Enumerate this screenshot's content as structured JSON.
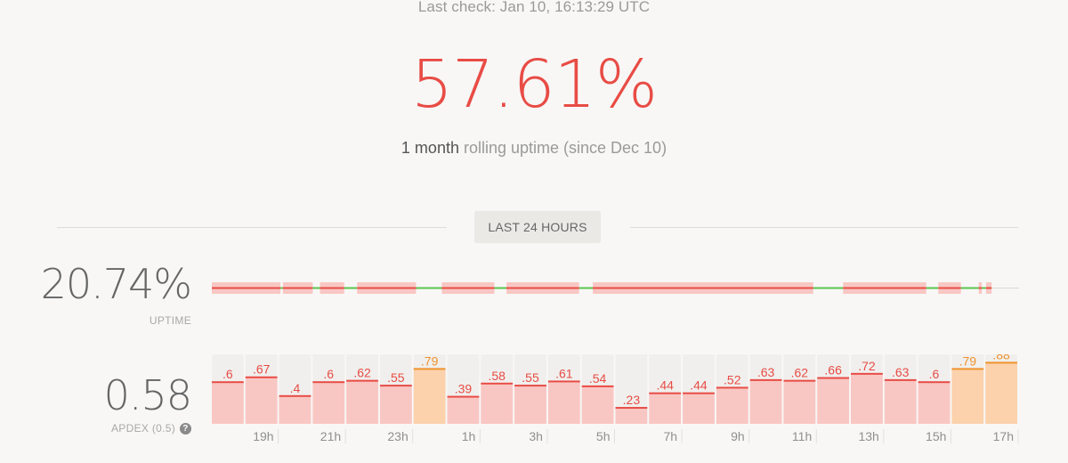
{
  "header": {
    "last_check": "Last check: Jan 10, 16:13:29 UTC",
    "uptime_percent": "57.61%",
    "rolling_strong": "1 month",
    "rolling_rest": " rolling uptime (since Dec 10)"
  },
  "range_selector": {
    "label": "LAST 24 HOURS"
  },
  "uptime_24h": {
    "value": "20.74%",
    "label": "UPTIME",
    "segments": [
      {
        "start": 0.0,
        "end": 0.085,
        "status": "down"
      },
      {
        "start": 0.085,
        "end": 0.088,
        "status": "up"
      },
      {
        "start": 0.088,
        "end": 0.125,
        "status": "down"
      },
      {
        "start": 0.125,
        "end": 0.134,
        "status": "up"
      },
      {
        "start": 0.134,
        "end": 0.164,
        "status": "down"
      },
      {
        "start": 0.164,
        "end": 0.18,
        "status": "up"
      },
      {
        "start": 0.18,
        "end": 0.253,
        "status": "down"
      },
      {
        "start": 0.253,
        "end": 0.285,
        "status": "up"
      },
      {
        "start": 0.285,
        "end": 0.35,
        "status": "down"
      },
      {
        "start": 0.35,
        "end": 0.365,
        "status": "up"
      },
      {
        "start": 0.365,
        "end": 0.455,
        "status": "down"
      },
      {
        "start": 0.455,
        "end": 0.472,
        "status": "up"
      },
      {
        "start": 0.472,
        "end": 0.745,
        "status": "down"
      },
      {
        "start": 0.745,
        "end": 0.782,
        "status": "up"
      },
      {
        "start": 0.782,
        "end": 0.885,
        "status": "down"
      },
      {
        "start": 0.885,
        "end": 0.9,
        "status": "up"
      },
      {
        "start": 0.9,
        "end": 0.928,
        "status": "down"
      },
      {
        "start": 0.928,
        "end": 0.95,
        "status": "up"
      },
      {
        "start": 0.95,
        "end": 0.954,
        "status": "down"
      },
      {
        "start": 0.954,
        "end": 0.959,
        "status": "up"
      },
      {
        "start": 0.959,
        "end": 0.966,
        "status": "down"
      },
      {
        "start": 0.966,
        "end": 1.0,
        "status": "none"
      }
    ]
  },
  "apdex_24h": {
    "value": "0.58",
    "label": "APDEX (0.5)"
  },
  "chart_data": {
    "type": "bar",
    "title": "",
    "threshold": 0.5,
    "values": [
      0.6,
      0.67,
      0.4,
      0.6,
      0.62,
      0.55,
      0.79,
      0.39,
      0.58,
      0.55,
      0.61,
      0.54,
      0.23,
      0.44,
      0.44,
      0.52,
      0.63,
      0.62,
      0.66,
      0.72,
      0.63,
      0.6,
      0.79,
      0.88
    ],
    "value_labels": [
      ".6",
      ".67",
      ".4",
      ".6",
      ".62",
      ".55",
      ".79",
      ".39",
      ".58",
      ".55",
      ".61",
      ".54",
      ".23",
      ".44",
      ".44",
      ".52",
      ".63",
      ".62",
      ".66",
      ".72",
      ".63",
      ".6",
      ".79",
      ".88"
    ],
    "x_ticks": [
      "19h",
      "21h",
      "23h",
      "1h",
      "3h",
      "5h",
      "7h",
      "9h",
      "11h",
      "13h",
      "15h",
      "17h"
    ],
    "ylim": [
      0,
      1
    ],
    "grid": false,
    "colors": {
      "poor_fill": "#f9c7c3",
      "poor_line": "#e84c45",
      "poor_text": "#e84c45",
      "fair_fill": "#fbd2ac",
      "fair_line": "#f0922f",
      "fair_text": "#f0922f",
      "background": "#f0efed"
    }
  },
  "colors": {
    "accent_red": "#e84c45",
    "up_green": "#5ac44c",
    "down_fill": "#f9c7c3",
    "down_line": "#e84c45",
    "no_data": "#d9d7d4"
  }
}
